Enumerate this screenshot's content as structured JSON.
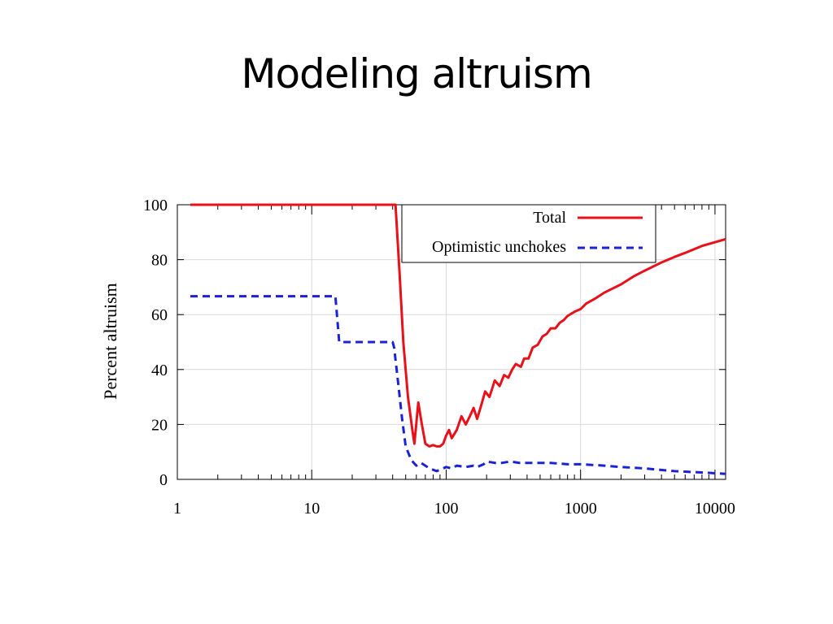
{
  "slide": {
    "title": "Modeling altruism"
  },
  "chart_data": {
    "type": "line",
    "title": "",
    "xlabel": "",
    "ylabel": "Percent altruism",
    "x_scale": "log",
    "xlim": [
      1,
      12000
    ],
    "ylim": [
      0,
      100
    ],
    "x_ticks": [
      {
        "value": 1,
        "label": "1"
      },
      {
        "value": 10,
        "label": "10"
      },
      {
        "value": 100,
        "label": "100"
      },
      {
        "value": 1000,
        "label": "1000"
      },
      {
        "value": 10000,
        "label": "10000"
      }
    ],
    "y_ticks": [
      {
        "value": 0,
        "label": "0"
      },
      {
        "value": 20,
        "label": "20"
      },
      {
        "value": 40,
        "label": "40"
      },
      {
        "value": 60,
        "label": "60"
      },
      {
        "value": 80,
        "label": "80"
      },
      {
        "value": 100,
        "label": "100"
      }
    ],
    "grid": true,
    "legend_position": "top-right",
    "series": [
      {
        "name": "Total",
        "color": "#e8101a",
        "style": "solid",
        "points": [
          [
            1.25,
            100
          ],
          [
            42,
            100
          ],
          [
            45,
            75
          ],
          [
            48,
            50
          ],
          [
            52,
            30
          ],
          [
            56,
            18
          ],
          [
            58,
            13
          ],
          [
            62,
            28
          ],
          [
            66,
            20
          ],
          [
            70,
            13
          ],
          [
            75,
            12
          ],
          [
            80,
            12.5
          ],
          [
            85,
            12
          ],
          [
            90,
            12
          ],
          [
            95,
            13
          ],
          [
            100,
            16
          ],
          [
            105,
            18
          ],
          [
            110,
            15
          ],
          [
            120,
            18
          ],
          [
            130,
            23
          ],
          [
            140,
            20
          ],
          [
            150,
            23
          ],
          [
            160,
            26
          ],
          [
            170,
            22
          ],
          [
            180,
            26
          ],
          [
            195,
            32
          ],
          [
            210,
            30
          ],
          [
            230,
            36
          ],
          [
            250,
            34
          ],
          [
            270,
            38
          ],
          [
            290,
            37
          ],
          [
            310,
            40
          ],
          [
            330,
            42
          ],
          [
            360,
            41
          ],
          [
            380,
            44
          ],
          [
            410,
            44
          ],
          [
            440,
            48
          ],
          [
            480,
            49
          ],
          [
            520,
            52
          ],
          [
            560,
            53
          ],
          [
            600,
            55
          ],
          [
            650,
            55
          ],
          [
            700,
            57
          ],
          [
            750,
            58
          ],
          [
            800,
            59.5
          ],
          [
            900,
            61
          ],
          [
            1000,
            62
          ],
          [
            1100,
            64
          ],
          [
            1300,
            66
          ],
          [
            1500,
            68
          ],
          [
            2000,
            71
          ],
          [
            2500,
            74
          ],
          [
            3000,
            76
          ],
          [
            4000,
            79
          ],
          [
            5000,
            81
          ],
          [
            6000,
            82.5
          ],
          [
            8000,
            85
          ],
          [
            12000,
            87.5
          ]
        ]
      },
      {
        "name": "Optimistic unchokes",
        "color": "#1a22d6",
        "style": "dashed",
        "points": [
          [
            1.25,
            66.7
          ],
          [
            15,
            66.7
          ],
          [
            15,
            66.7
          ],
          [
            16,
            50
          ],
          [
            40,
            50
          ],
          [
            41,
            48
          ],
          [
            44,
            35
          ],
          [
            47,
            22
          ],
          [
            50,
            12
          ],
          [
            55,
            7
          ],
          [
            60,
            5
          ],
          [
            65,
            6
          ],
          [
            70,
            5
          ],
          [
            75,
            4
          ],
          [
            80,
            3.5
          ],
          [
            85,
            3
          ],
          [
            90,
            3.5
          ],
          [
            100,
            4.5
          ],
          [
            110,
            4
          ],
          [
            120,
            5
          ],
          [
            140,
            4.5
          ],
          [
            160,
            5
          ],
          [
            170,
            4.5
          ],
          [
            190,
            5.5
          ],
          [
            200,
            6.5
          ],
          [
            230,
            6
          ],
          [
            260,
            6
          ],
          [
            300,
            6.5
          ],
          [
            350,
            6
          ],
          [
            400,
            6
          ],
          [
            500,
            6
          ],
          [
            600,
            6
          ],
          [
            800,
            5.5
          ],
          [
            1000,
            5.5
          ],
          [
            1500,
            5
          ],
          [
            2000,
            4.5
          ],
          [
            3000,
            4
          ],
          [
            5000,
            3
          ],
          [
            8000,
            2.5
          ],
          [
            12000,
            2
          ]
        ]
      }
    ]
  }
}
